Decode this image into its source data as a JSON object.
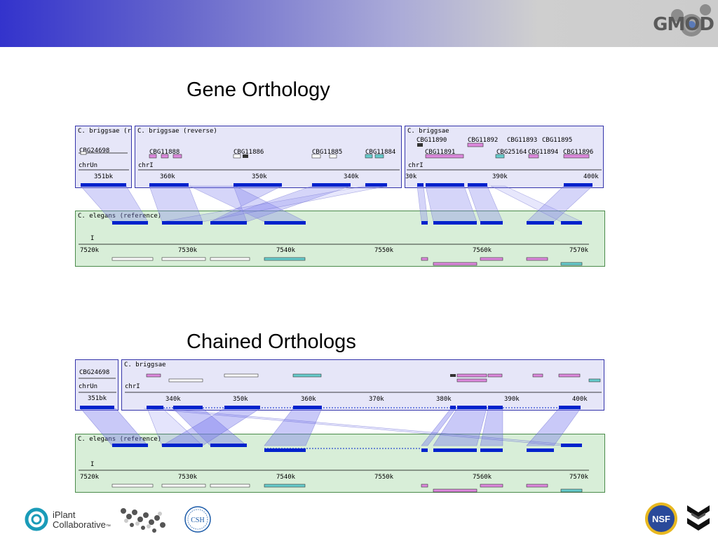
{
  "header": {
    "logo_text": "GMOD",
    "colors": {
      "gradient_left": "#3333cc",
      "gradient_right": "#cccccc"
    }
  },
  "section1": {
    "title": "Gene Orthology",
    "top_panels": [
      {
        "title": "C. briggsae (reverse)",
        "chrom": "chrUn",
        "genes": [
          "CBG24698"
        ],
        "ticks": [
          "351bk"
        ]
      },
      {
        "title": "C. briggsae (reverse)",
        "chrom": "chrI",
        "genes": [
          "CBG11888",
          "CBG11886",
          "CBG11885",
          "CBG11884"
        ],
        "ticks": [
          "360k",
          "350k",
          "340k"
        ]
      },
      {
        "title": "C. briggsae",
        "chrom": "chrI",
        "genes": [
          "CBG11890",
          "CBG11891",
          "CBG11892",
          "CBG11893",
          "CBG25164",
          "CBG11894",
          "CBG11895",
          "CBG11896"
        ],
        "ticks": [
          "30k",
          "390k",
          "400k"
        ]
      }
    ],
    "reference": {
      "title": "C. elegans (reference)",
      "chrom": "I",
      "ticks": [
        "7520k",
        "7530k",
        "7540k",
        "7550k",
        "7560k",
        "7570k"
      ]
    }
  },
  "section2": {
    "title": "Chained Orthologs",
    "top_panels": [
      {
        "title": "",
        "chrom": "chrUn",
        "genes": [
          "CBG24698"
        ],
        "ticks": [
          "351bk"
        ]
      },
      {
        "title": "C. briggsae",
        "chrom": "chrI",
        "genes": [],
        "ticks": [
          "340k",
          "350k",
          "360k",
          "370k",
          "380k",
          "390k",
          "400k"
        ]
      }
    ],
    "reference": {
      "title": "C. elegans (reference)",
      "chrom": "I",
      "ticks": [
        "7520k",
        "7530k",
        "7540k",
        "7550k",
        "7560k",
        "7570k"
      ]
    }
  },
  "footer": {
    "iplant_line1": "iPlant",
    "iplant_line2": "Collaborative",
    "trademark": "™",
    "csh_label": "CSH",
    "nsf_label": "NSF"
  },
  "icons": [
    "gear-icon",
    "iplant-logo-icon",
    "dna-helix-icon",
    "csh-seal-icon",
    "nsf-seal-icon",
    "chevron-logo-icon"
  ]
}
